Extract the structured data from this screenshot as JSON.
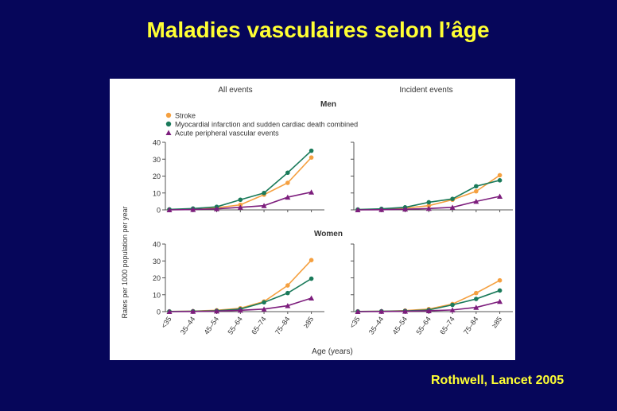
{
  "slide": {
    "title": "Maladies vasculaires selon l’âge",
    "citation": "Rothwell, Lancet  2005"
  },
  "colors": {
    "background": "#06065a",
    "title_text": "#ffff33",
    "stroke": "#f5a040",
    "mi": "#1a7a5a",
    "pvd": "#7d1e7d"
  },
  "chart_data": {
    "type": "line",
    "column_titles": [
      "All events",
      "Incident events"
    ],
    "row_titles": [
      "Men",
      "Women"
    ],
    "categories": [
      "<35",
      "35–44",
      "45–54",
      "55–64",
      "65–74",
      "75–84",
      "≥85"
    ],
    "xlabel": "Age (years)",
    "ylabel": "Rates per 1000 population per year",
    "ylim": [
      0,
      40
    ],
    "yticks": [
      0,
      10,
      20,
      30,
      40
    ],
    "legend": [
      {
        "name": "Stroke",
        "marker": "circle",
        "color": "#f5a040"
      },
      {
        "name": "Myocardial infarction and sudden cardiac death combined",
        "marker": "circle",
        "color": "#1a7a5a"
      },
      {
        "name": "Acute peripheral vascular events",
        "marker": "triangle",
        "color": "#7d1e7d"
      }
    ],
    "legend_position": "top-left",
    "panels": [
      {
        "row": "Men",
        "column": "All events",
        "series": [
          {
            "name": "Stroke",
            "values": [
              0.2,
              0.5,
              1.2,
              3.0,
              9.0,
              16.0,
              31.0
            ]
          },
          {
            "name": "Myocardial infarction and sudden cardiac death combined",
            "values": [
              0.3,
              0.8,
              1.8,
              6.0,
              10.0,
              22.0,
              35.0
            ]
          },
          {
            "name": "Acute peripheral vascular events",
            "values": [
              0.0,
              0.2,
              0.6,
              1.5,
              2.5,
              7.5,
              10.5
            ]
          }
        ]
      },
      {
        "row": "Men",
        "column": "Incident events",
        "series": [
          {
            "name": "Stroke",
            "values": [
              0.1,
              0.3,
              1.0,
              2.5,
              6.0,
              11.0,
              20.5
            ]
          },
          {
            "name": "Myocardial infarction and sudden cardiac death combined",
            "values": [
              0.2,
              0.6,
              1.5,
              4.5,
              6.5,
              14.0,
              17.5
            ]
          },
          {
            "name": "Acute peripheral vascular events",
            "values": [
              0.0,
              0.1,
              0.4,
              0.8,
              1.5,
              5.0,
              8.0
            ]
          }
        ]
      },
      {
        "row": "Women",
        "column": "All events",
        "series": [
          {
            "name": "Stroke",
            "values": [
              0.1,
              0.3,
              0.8,
              2.0,
              6.0,
              15.5,
              30.5
            ]
          },
          {
            "name": "Myocardial infarction and sudden cardiac death combined",
            "values": [
              0.1,
              0.2,
              0.5,
              1.5,
              5.5,
              11.0,
              19.5
            ]
          },
          {
            "name": "Acute peripheral vascular events",
            "values": [
              0.0,
              0.1,
              0.3,
              0.8,
              1.5,
              3.5,
              8.0
            ]
          }
        ]
      },
      {
        "row": "Women",
        "column": "Incident events",
        "series": [
          {
            "name": "Stroke",
            "values": [
              0.1,
              0.2,
              0.6,
              1.5,
              4.5,
              11.0,
              18.5
            ]
          },
          {
            "name": "Myocardial infarction and sudden cardiac death combined",
            "values": [
              0.1,
              0.2,
              0.4,
              1.0,
              4.0,
              7.5,
              12.5
            ]
          },
          {
            "name": "Acute peripheral vascular events",
            "values": [
              0.0,
              0.1,
              0.2,
              0.5,
              1.0,
              2.5,
              6.0
            ]
          }
        ]
      }
    ]
  }
}
